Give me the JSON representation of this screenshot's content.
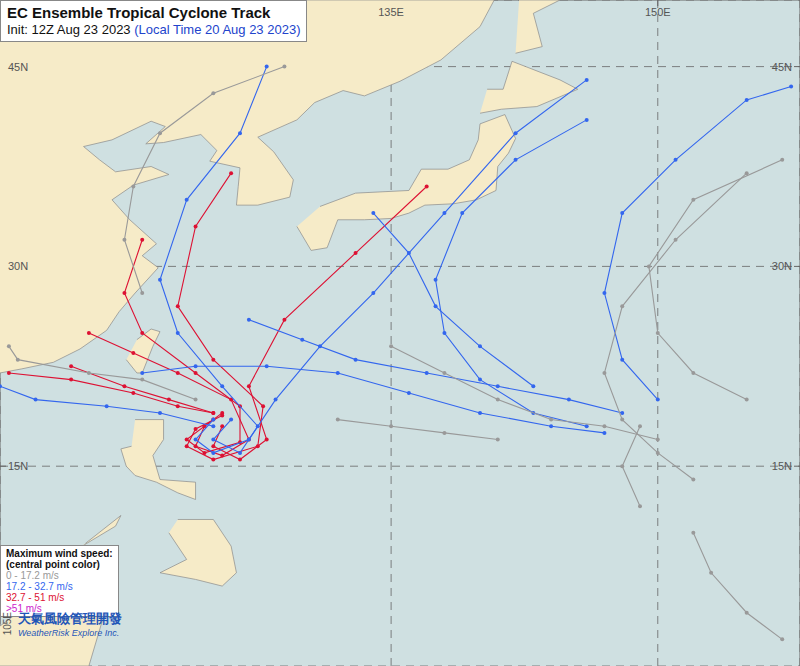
{
  "chart_data": {
    "type": "map_tracks",
    "title": "EC Ensemble Tropical Cyclone Track",
    "subtitle": "Init: 12Z Aug 23 2023",
    "subtitle_note": "(Local Time 20 Aug 23 2023)",
    "xlim": [
      113,
      158
    ],
    "ylim": [
      0,
      50
    ],
    "xticks": [
      {
        "value": 135,
        "label": "135E"
      },
      {
        "value": 150,
        "label": "150E"
      }
    ],
    "yticks": [
      {
        "value": 15,
        "label": "15N"
      },
      {
        "value": 30,
        "label": "30N"
      },
      {
        "value": 45,
        "label": "45N"
      }
    ],
    "grid": true,
    "legend_title": [
      "Maximum wind speed:",
      "(central point color)"
    ],
    "legend_items": [
      {
        "label": "0 - 17.2 m/s",
        "color": "#999999"
      },
      {
        "label": "17.2 - 32.7 m/s",
        "color": "#3366ee"
      },
      {
        "label": "32.7 - 51 m/s",
        "color": "#dd1133"
      },
      {
        "label": ">51 m/s",
        "color": "#cc22cc"
      }
    ],
    "annotations": [
      "105E"
    ],
    "credit": [
      "天氣風險管理開發",
      "WeatherRisk Explore Inc."
    ],
    "basemap": {
      "land": [
        [
          [
            113,
            22
          ],
          [
            114.2,
            22.3
          ],
          [
            116,
            22.8
          ],
          [
            117.5,
            23.8
          ],
          [
            119,
            25.2
          ],
          [
            119.7,
            26.6
          ],
          [
            120.6,
            28
          ],
          [
            121.9,
            29.9
          ],
          [
            121,
            30.8
          ],
          [
            121.8,
            31.7
          ],
          [
            120.3,
            33.5
          ],
          [
            119.3,
            35
          ],
          [
            120.5,
            36.1
          ],
          [
            122.5,
            36.9
          ],
          [
            121.5,
            37.5
          ],
          [
            119.5,
            37.1
          ],
          [
            118.6,
            38
          ],
          [
            117.7,
            39
          ],
          [
            119.3,
            39.5
          ],
          [
            121.5,
            40.9
          ],
          [
            122.3,
            40.5
          ],
          [
            121.2,
            39.2
          ],
          [
            122.2,
            39.3
          ],
          [
            124.3,
            39.9
          ],
          [
            125.2,
            38.7
          ],
          [
            124.8,
            37.9
          ],
          [
            126.5,
            37.4
          ],
          [
            126.4,
            36
          ],
          [
            126.3,
            34.6
          ],
          [
            127.5,
            34.6
          ],
          [
            129.3,
            35.2
          ],
          [
            129.5,
            36.5
          ],
          [
            128.4,
            38.6
          ],
          [
            127.5,
            39.7
          ],
          [
            129.7,
            41
          ],
          [
            130.7,
            42.3
          ],
          [
            132.3,
            43.2
          ],
          [
            133.5,
            42.8
          ],
          [
            135.5,
            43.9
          ],
          [
            137.8,
            45.5
          ],
          [
            140,
            48
          ],
          [
            140.8,
            50
          ],
          [
            113,
            50
          ]
        ],
        [
          [
            129.7,
            33
          ],
          [
            130.5,
            31.2
          ],
          [
            131.4,
            31.4
          ],
          [
            132,
            33.5
          ],
          [
            133.5,
            33.5
          ],
          [
            135,
            33.6
          ],
          [
            136,
            34
          ],
          [
            136.9,
            34.6
          ],
          [
            138.5,
            34.7
          ],
          [
            139.8,
            35
          ],
          [
            140.9,
            35.7
          ],
          [
            141,
            37.5
          ],
          [
            141.6,
            38.5
          ],
          [
            142,
            39.6
          ],
          [
            141.4,
            41.4
          ],
          [
            140,
            40.7
          ],
          [
            139.9,
            39.5
          ],
          [
            139.4,
            38
          ],
          [
            138.2,
            37.3
          ],
          [
            136.7,
            37.3
          ],
          [
            136,
            35.7
          ],
          [
            133,
            35.5
          ],
          [
            131,
            34.5
          ]
        ],
        [
          [
            140,
            41.5
          ],
          [
            141.2,
            41.8
          ],
          [
            143.2,
            42
          ],
          [
            145.5,
            43.3
          ],
          [
            144.5,
            44
          ],
          [
            141.8,
            45.4
          ],
          [
            141.3,
            43.3
          ],
          [
            140.4,
            43.3
          ]
        ],
        [
          [
            142,
            46
          ],
          [
            143.5,
            46.5
          ],
          [
            143,
            49
          ],
          [
            144.5,
            50
          ],
          [
            142.2,
            50
          ]
        ],
        [
          [
            120.1,
            23
          ],
          [
            120.7,
            22
          ],
          [
            121,
            22
          ],
          [
            121.6,
            24
          ],
          [
            122,
            25.1
          ],
          [
            121.5,
            25.3
          ],
          [
            120.7,
            24.5
          ]
        ],
        [
          [
            120.6,
            18.5
          ],
          [
            122.2,
            18.5
          ],
          [
            122.2,
            17
          ],
          [
            121.6,
            15.8
          ],
          [
            122,
            14
          ],
          [
            124,
            13.8
          ],
          [
            124,
            12.5
          ],
          [
            123,
            13
          ],
          [
            121.8,
            13.8
          ],
          [
            120.6,
            14.3
          ],
          [
            120.1,
            15
          ],
          [
            119.8,
            16.3
          ],
          [
            120.4,
            16.5
          ]
        ],
        [
          [
            123,
            11
          ],
          [
            125,
            11
          ],
          [
            126,
            9
          ],
          [
            126.3,
            7
          ],
          [
            125.5,
            6
          ],
          [
            124,
            6.5
          ],
          [
            122,
            7
          ],
          [
            123.5,
            8
          ],
          [
            122.5,
            10
          ]
        ],
        [
          [
            117,
            8.5
          ],
          [
            119.5,
            10.5
          ],
          [
            119.8,
            11.3
          ],
          [
            117.8,
            9.2
          ]
        ],
        [
          [
            113,
            3
          ],
          [
            115,
            5
          ],
          [
            116.8,
            7
          ],
          [
            118.5,
            5.5
          ],
          [
            119,
            4.5
          ],
          [
            118,
            0
          ],
          [
            113,
            0
          ]
        ]
      ]
    },
    "series": [
      {
        "color": "#dd1133",
        "values": [
          [
            125.5,
            19
          ],
          [
            124.5,
            18
          ],
          [
            124,
            16.5
          ],
          [
            125.5,
            15.8
          ],
          [
            127,
            17
          ],
          [
            126,
            20
          ],
          [
            123,
            22
          ],
          [
            120.5,
            23.5
          ],
          [
            118,
            25
          ]
        ]
      },
      {
        "color": "#dd1133",
        "values": [
          [
            125,
            18.5
          ],
          [
            123.5,
            17
          ],
          [
            124.5,
            16
          ],
          [
            126.5,
            16.8
          ],
          [
            126.5,
            19.5
          ],
          [
            124,
            22
          ],
          [
            121,
            25
          ],
          [
            120,
            28
          ],
          [
            121,
            32
          ]
        ]
      },
      {
        "color": "#dd1133",
        "values": [
          [
            125.5,
            18.8
          ],
          [
            124,
            17.8
          ],
          [
            123.5,
            16.5
          ],
          [
            125,
            15.5
          ],
          [
            127.5,
            16.5
          ],
          [
            127.8,
            19.5
          ],
          [
            125,
            23
          ],
          [
            123,
            27
          ],
          [
            124,
            33
          ],
          [
            126,
            37
          ]
        ]
      },
      {
        "color": "#dd1133",
        "values": [
          [
            125,
            19
          ],
          [
            123,
            19.5
          ],
          [
            120.5,
            20.5
          ],
          [
            117,
            21.5
          ],
          [
            113.5,
            22
          ]
        ]
      },
      {
        "color": "#dd1133",
        "values": [
          [
            125.5,
            18
          ],
          [
            125,
            16.5
          ],
          [
            126.5,
            15.5
          ],
          [
            128,
            17
          ],
          [
            127,
            21
          ],
          [
            129,
            26
          ],
          [
            133,
            31
          ],
          [
            137,
            36
          ]
        ]
      },
      {
        "color": "#dd1133",
        "values": [
          [
            125,
            19
          ],
          [
            122.5,
            20
          ],
          [
            120,
            21
          ],
          [
            117,
            22.5
          ]
        ]
      },
      {
        "color": "#3366ee",
        "values": [
          [
            125,
            18.5
          ],
          [
            124,
            17
          ],
          [
            125,
            16
          ],
          [
            127,
            17
          ],
          [
            128.5,
            20
          ],
          [
            131,
            24
          ],
          [
            134,
            28
          ],
          [
            138,
            34
          ],
          [
            142,
            40
          ],
          [
            146,
            44
          ]
        ]
      },
      {
        "color": "#3366ee",
        "values": [
          [
            126,
            18.5
          ],
          [
            125,
            17
          ],
          [
            126.5,
            16
          ],
          [
            127.5,
            18
          ],
          [
            125.5,
            21
          ],
          [
            123,
            25
          ],
          [
            122,
            29
          ],
          [
            123.5,
            35
          ],
          [
            126.5,
            40
          ],
          [
            128,
            45
          ]
        ]
      },
      {
        "color": "#3366ee",
        "values": [
          [
            148,
            19
          ],
          [
            145,
            20
          ],
          [
            141,
            21
          ],
          [
            137,
            22
          ],
          [
            133,
            23
          ],
          [
            130,
            24.5
          ],
          [
            127,
            26
          ]
        ]
      },
      {
        "color": "#3366ee",
        "values": [
          [
            146,
            18
          ],
          [
            143,
            19
          ],
          [
            140,
            21.5
          ],
          [
            138,
            25
          ],
          [
            137.5,
            29
          ],
          [
            139,
            34
          ],
          [
            142,
            38
          ],
          [
            146,
            41
          ]
        ]
      },
      {
        "color": "#3366ee",
        "values": [
          [
            150,
            20
          ],
          [
            148,
            23
          ],
          [
            147,
            28
          ],
          [
            148,
            34
          ],
          [
            151,
            38
          ],
          [
            155,
            42.5
          ],
          [
            157.5,
            43.5
          ]
        ]
      },
      {
        "color": "#3366ee",
        "values": [
          [
            147,
            17.5
          ],
          [
            144,
            18
          ],
          [
            140,
            19
          ],
          [
            136,
            20.5
          ],
          [
            132,
            22
          ],
          [
            128,
            22.5
          ],
          [
            124,
            22.5
          ],
          [
            121,
            22
          ]
        ]
      },
      {
        "color": "#3366ee",
        "values": [
          [
            143,
            21
          ],
          [
            140,
            24
          ],
          [
            137.5,
            27
          ],
          [
            136,
            31
          ],
          [
            134,
            34
          ]
        ]
      },
      {
        "color": "#3366ee",
        "values": [
          [
            125,
            18
          ],
          [
            122,
            19
          ],
          [
            119,
            19.5
          ],
          [
            115,
            20
          ],
          [
            113,
            21
          ]
        ]
      },
      {
        "color": "#999999",
        "values": [
          [
            150,
            17
          ],
          [
            147,
            18
          ],
          [
            144,
            18.5
          ],
          [
            141,
            20
          ],
          [
            138,
            22
          ],
          [
            135,
            24
          ]
        ]
      },
      {
        "color": "#999999",
        "values": [
          [
            152,
            14
          ],
          [
            150,
            16
          ],
          [
            148,
            18.5
          ],
          [
            147,
            22
          ],
          [
            148,
            27
          ],
          [
            151,
            32
          ],
          [
            155,
            37
          ]
        ]
      },
      {
        "color": "#999999",
        "values": [
          [
            155,
            20
          ],
          [
            152,
            22
          ],
          [
            150,
            25
          ],
          [
            149.5,
            30
          ],
          [
            152,
            35
          ],
          [
            157,
            38
          ]
        ]
      },
      {
        "color": "#999999",
        "values": [
          [
            149,
            12
          ],
          [
            148,
            15
          ],
          [
            149,
            18
          ]
        ]
      },
      {
        "color": "#999999",
        "values": [
          [
            121,
            28
          ],
          [
            120,
            32
          ],
          [
            120.5,
            36
          ],
          [
            122,
            40
          ],
          [
            125,
            43
          ],
          [
            129,
            45
          ]
        ]
      },
      {
        "color": "#999999",
        "values": [
          [
            124,
            20
          ],
          [
            121,
            21.5
          ],
          [
            118,
            22
          ],
          [
            114,
            23
          ],
          [
            113.5,
            24
          ]
        ]
      },
      {
        "color": "#999999",
        "values": [
          [
            141,
            17
          ],
          [
            138,
            17.5
          ],
          [
            135,
            18
          ],
          [
            132,
            18.5
          ]
        ]
      },
      {
        "color": "#999999",
        "values": [
          [
            152,
            10
          ],
          [
            153,
            7
          ],
          [
            155,
            4
          ],
          [
            157,
            2
          ]
        ]
      }
    ]
  }
}
